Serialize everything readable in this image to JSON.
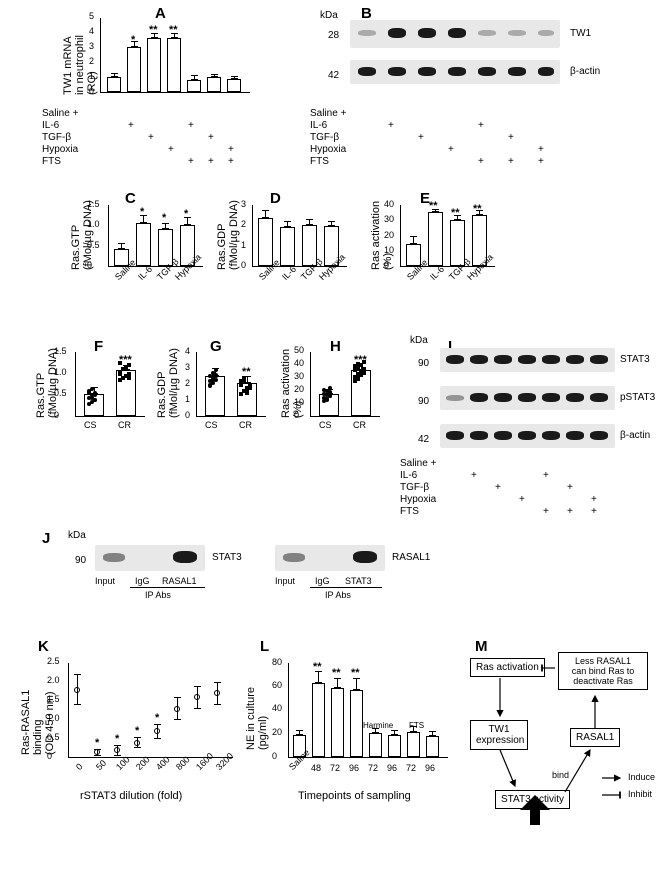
{
  "panels": {
    "A": {
      "label": "A",
      "ylabel": "TW1 mRNA\nin neutrophil (RQ)",
      "ylim": [
        0,
        5
      ],
      "yticks": [
        0,
        1,
        2,
        3,
        4,
        5
      ],
      "values": [
        1.0,
        3.0,
        3.6,
        3.6,
        0.8,
        1.0,
        0.9
      ],
      "err": [
        0.15,
        0.4,
        0.3,
        0.3,
        0.3,
        0.2,
        0.2
      ],
      "sig": [
        "",
        "*",
        "**",
        "**",
        "",
        "",
        ""
      ],
      "bar_color": "#ffffff",
      "border": "#000000"
    },
    "B": {
      "label": "B",
      "kda": [
        28,
        42
      ],
      "rows": [
        "TW1",
        "β-actin"
      ],
      "intensities_tw1": [
        0.15,
        0.9,
        0.95,
        0.9,
        0.18,
        0.2,
        0.15
      ],
      "intensities_actin": [
        0.9,
        0.9,
        0.9,
        0.9,
        0.9,
        0.9,
        0.9
      ]
    },
    "treatments": {
      "rows": [
        "Saline +",
        "IL-6",
        "TGF-β",
        "Hypoxia",
        "FTS"
      ],
      "matrix": [
        [
          true,
          true,
          true,
          true,
          true,
          true,
          true
        ],
        [
          false,
          true,
          false,
          false,
          true,
          false,
          false
        ],
        [
          false,
          false,
          true,
          false,
          false,
          true,
          false
        ],
        [
          false,
          false,
          false,
          true,
          false,
          false,
          true
        ],
        [
          false,
          false,
          false,
          false,
          true,
          true,
          true
        ]
      ]
    },
    "C": {
      "label": "C",
      "ylabel": "Ras.GTP\n(fMol/µg DNA)",
      "ylim": [
        0,
        1.5
      ],
      "yticks": [
        0,
        0.5,
        1.0,
        1.5
      ],
      "x": [
        "Saline",
        "IL-6",
        "TGF-β",
        "Hypoxia"
      ],
      "values": [
        0.42,
        1.05,
        0.9,
        1.0
      ],
      "err": [
        0.15,
        0.2,
        0.15,
        0.2
      ],
      "sig": [
        "",
        "*",
        "*",
        "*"
      ]
    },
    "D": {
      "label": "D",
      "ylabel": "Ras.GDP\n(fMol/µg DNA)",
      "ylim": [
        0,
        3
      ],
      "yticks": [
        0,
        1,
        2,
        3
      ],
      "x": [
        "Saline",
        "IL-6",
        "TGF-β",
        "Hypoxia"
      ],
      "values": [
        2.3,
        1.9,
        2.0,
        1.95
      ],
      "err": [
        0.4,
        0.3,
        0.3,
        0.25
      ],
      "sig": [
        "",
        "",
        "",
        ""
      ]
    },
    "E": {
      "label": "E",
      "ylabel": "Ras activation (%)",
      "ylim": [
        0,
        40
      ],
      "yticks": [
        0,
        10,
        20,
        30,
        40
      ],
      "x": [
        "Saline",
        "IL-6",
        "TGF-β",
        "Hypoxia"
      ],
      "values": [
        14,
        35,
        30,
        33
      ],
      "err": [
        5,
        2,
        3,
        3
      ],
      "sig": [
        "",
        "**",
        "**",
        "**"
      ]
    },
    "F": {
      "label": "F",
      "ylabel": "Ras.GTP\n(fMol/µg DNA)",
      "ylim": [
        0,
        1.5
      ],
      "yticks": [
        0,
        0.5,
        1.0,
        1.5
      ],
      "x": [
        "CS",
        "CR"
      ],
      "means": [
        0.5,
        1.05
      ],
      "err": [
        0.15,
        0.12
      ],
      "sig": [
        "",
        "***"
      ],
      "n": [
        12,
        18
      ]
    },
    "G": {
      "label": "G",
      "ylabel": "Ras.GDP\n(fMol/µg DNA)",
      "ylim": [
        0,
        4
      ],
      "yticks": [
        0,
        1,
        2,
        3,
        4
      ],
      "x": [
        "CS",
        "CR"
      ],
      "means": [
        2.4,
        2.0
      ],
      "err": [
        0.5,
        0.4
      ],
      "sig": [
        "",
        "**"
      ],
      "n": [
        12,
        18
      ]
    },
    "H": {
      "label": "H",
      "ylabel": "Ras activation (%)",
      "ylim": [
        0,
        50
      ],
      "yticks": [
        0,
        10,
        20,
        30,
        40,
        50
      ],
      "x": [
        "CS",
        "CR"
      ],
      "means": [
        17,
        35
      ],
      "err": [
        4,
        5
      ],
      "sig": [
        "",
        "***"
      ],
      "n": [
        12,
        18
      ]
    },
    "I": {
      "label": "I",
      "kda": [
        90,
        90,
        42
      ],
      "rows": [
        "STAT3",
        "pSTAT3",
        "β-actin"
      ]
    },
    "J": {
      "label": "J",
      "kda": [
        90
      ],
      "rows": [
        "STAT3",
        "RASAL1"
      ],
      "sub": [
        "Input",
        "IgG",
        "RASAL1",
        "Input",
        "IgG",
        "STAT3"
      ],
      "ip": "IP Abs"
    },
    "K": {
      "label": "K",
      "ylabel": "Ras-RASAL1 binding\n(OD 450 nm)",
      "ylim": [
        0,
        2.5
      ],
      "yticks": [
        0,
        0.5,
        1.0,
        1.5,
        2.0,
        2.5
      ],
      "xlabel": "rSTAT3 dilution (fold)",
      "x": [
        "0",
        "50",
        "100",
        "200",
        "400",
        "800",
        "1600",
        "3200"
      ],
      "values": [
        1.8,
        0.15,
        0.2,
        0.4,
        0.7,
        1.3,
        1.6,
        1.7
      ],
      "err": [
        0.4,
        0.1,
        0.15,
        0.15,
        0.2,
        0.3,
        0.3,
        0.3
      ],
      "sig": [
        "",
        "*",
        "*",
        "*",
        "*",
        "",
        "",
        ""
      ]
    },
    "L": {
      "label": "L",
      "ylabel": "NE in culture\n(pg/ml)",
      "ylim": [
        0,
        80
      ],
      "yticks": [
        0,
        20,
        40,
        60,
        80
      ],
      "xlabel": "Timepoints of sampling",
      "x": [
        "Saline",
        "48",
        "72",
        "96",
        "72",
        "96",
        "72",
        "96"
      ],
      "headers": [
        "",
        "",
        "",
        "",
        "Harmine",
        "",
        "FTS",
        ""
      ],
      "values": [
        19,
        62,
        58,
        56,
        20,
        19,
        21,
        18
      ],
      "err": [
        4,
        10,
        8,
        10,
        4,
        4,
        5,
        4
      ],
      "sig": [
        "",
        "**",
        "**",
        "**",
        "",
        "",
        "",
        ""
      ]
    },
    "M": {
      "label": "M",
      "nodes": {
        "ras": "Ras activation",
        "tw1": "TW1\nexpression",
        "rasal1": "RASAL1",
        "less": "Less RASAL1\ncan bind Ras to\ndeactivate Ras",
        "stat3": "STAT3 activity"
      },
      "legend": {
        "induce": "Induce",
        "inhibit": "Inhibit",
        "bind": "bind"
      }
    }
  },
  "colors": {
    "bg": "#ffffff",
    "bar_fill": "#ffffff",
    "bar_stroke": "#000000",
    "blot_bg": "#e0e0e0",
    "band": "#1a1a1a"
  }
}
